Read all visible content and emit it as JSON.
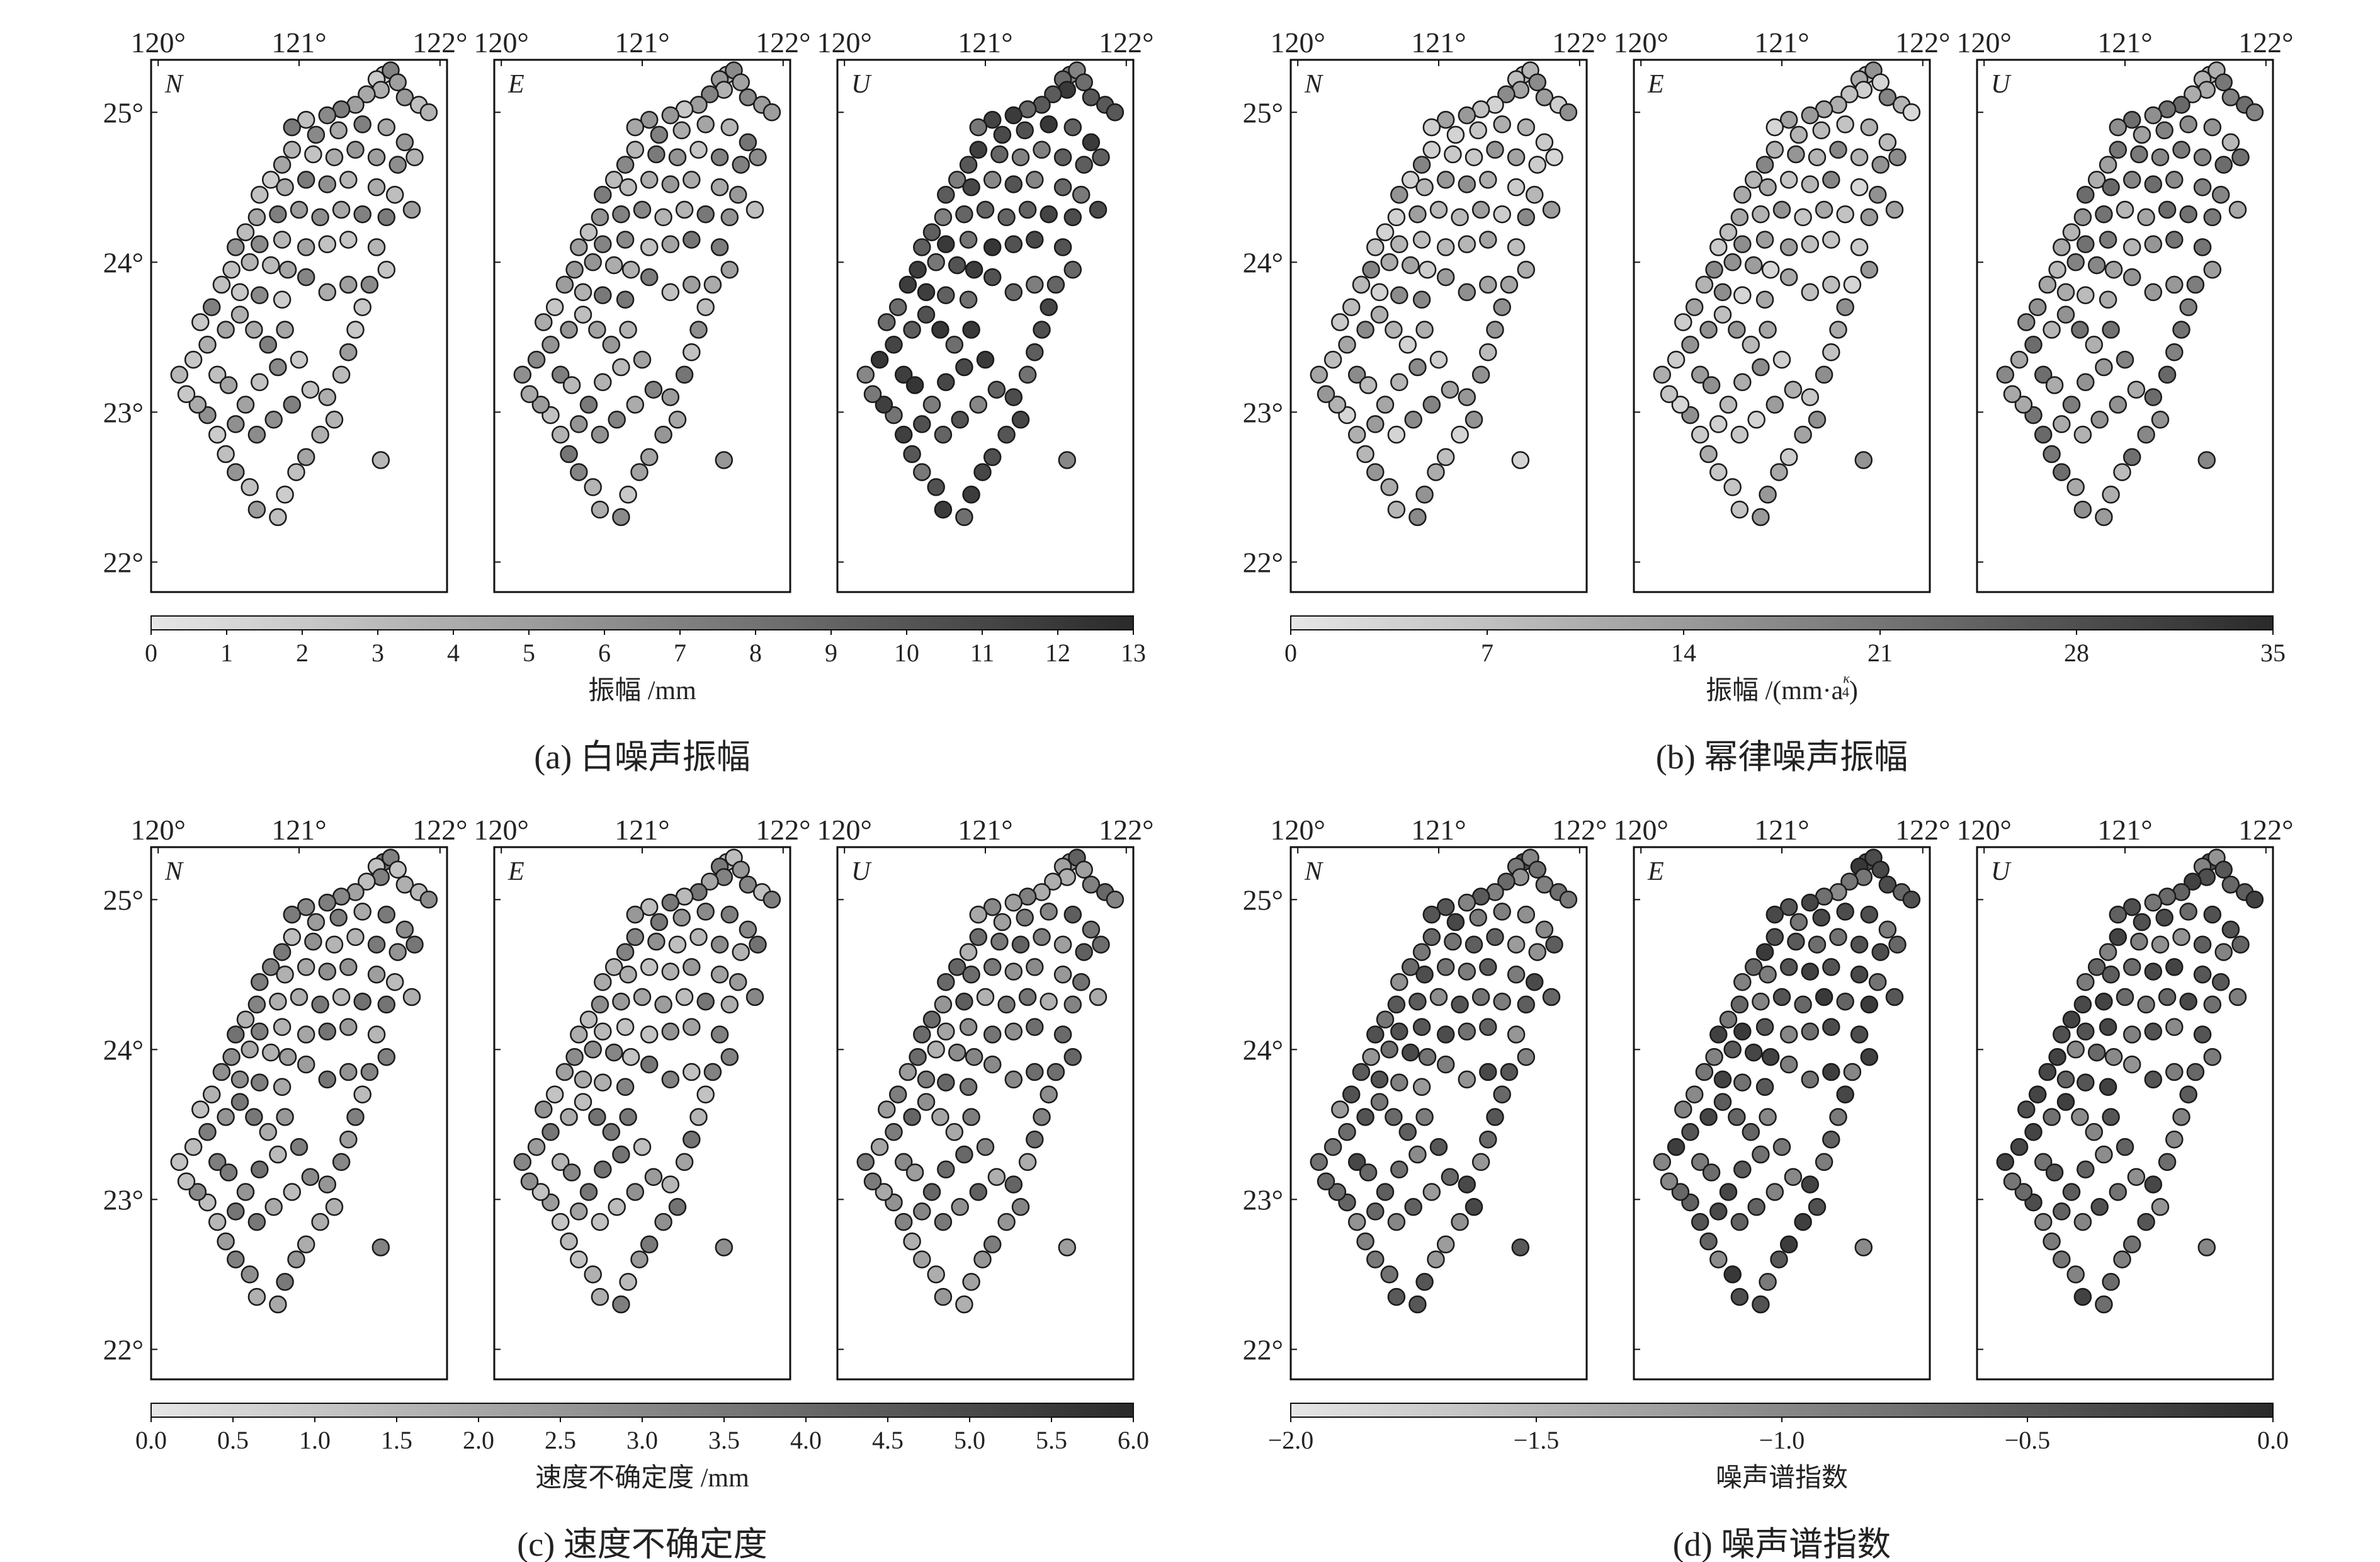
{
  "figure": {
    "lon_ticks": [
      "120°",
      "121°",
      "122°"
    ],
    "lat_ticks": [
      "22°",
      "23°",
      "24°",
      "25°"
    ],
    "component_labels": [
      "N",
      "E",
      "U"
    ]
  },
  "colors": {
    "low": "#e6e6e6",
    "high": "#2a2a2a",
    "frame": "#111111",
    "marker_edge": "#1a1a1a"
  },
  "chart_data": [
    {
      "type": "scatter",
      "caption": "(a) 白噪声振幅",
      "xlabel": "振幅 /mm",
      "colorbar_ticks": [
        "0",
        "1",
        "2",
        "3",
        "4",
        "5",
        "6",
        "7",
        "8",
        "9",
        "10",
        "11",
        "12",
        "13"
      ],
      "colorbar_range": [
        0,
        13
      ],
      "panels": [
        {
          "component": "N",
          "level": 0.35
        },
        {
          "component": "E",
          "level": 0.38
        },
        {
          "component": "U",
          "level": 0.72
        }
      ]
    },
    {
      "type": "scatter",
      "caption": "(b) 幂律噪声振幅",
      "xlabel": "振幅 /(mm·a^(κ/4))",
      "xlabel_main": "振幅 /(mm",
      "xlabel_dot": "·",
      "xlabel_a": "a",
      "xlabel_exp_num": "κ",
      "xlabel_exp_den": "4",
      "xlabel_close": ")",
      "colorbar_ticks": [
        "0",
        "7",
        "14",
        "21",
        "28",
        "35"
      ],
      "colorbar_range": [
        0,
        35
      ],
      "panels": [
        {
          "component": "N",
          "level": 0.3
        },
        {
          "component": "E",
          "level": 0.3
        },
        {
          "component": "U",
          "level": 0.45
        }
      ]
    },
    {
      "type": "scatter",
      "caption": "(c) 速度不确定度",
      "xlabel": "速度不确定度 /mm",
      "colorbar_ticks": [
        "0.0",
        "0.5",
        "1.0",
        "1.5",
        "2.0",
        "2.5",
        "3.0",
        "3.5",
        "4.0",
        "4.5",
        "5.0",
        "5.5",
        "6.0"
      ],
      "colorbar_range": [
        0.0,
        6.0
      ],
      "panels": [
        {
          "component": "N",
          "level": 0.4
        },
        {
          "component": "E",
          "level": 0.4
        },
        {
          "component": "U",
          "level": 0.5
        }
      ]
    },
    {
      "type": "scatter",
      "caption": "(d) 噪声谱指数",
      "xlabel": "噪声谱指数",
      "colorbar_ticks": [
        "−2.0",
        "−1.5",
        "−1.0",
        "−0.5",
        "0.0"
      ],
      "colorbar_range": [
        -2.0,
        0.0
      ],
      "panels": [
        {
          "component": "N",
          "level": 0.62
        },
        {
          "component": "E",
          "level": 0.7
        },
        {
          "component": "U",
          "level": 0.66
        }
      ]
    }
  ],
  "stations": [
    [
      121.6,
      25.25
    ],
    [
      121.65,
      25.28
    ],
    [
      121.55,
      25.22
    ],
    [
      121.7,
      25.2
    ],
    [
      121.58,
      25.15
    ],
    [
      121.48,
      25.12
    ],
    [
      121.75,
      25.1
    ],
    [
      121.85,
      25.05
    ],
    [
      121.92,
      25.0
    ],
    [
      121.4,
      25.05
    ],
    [
      121.3,
      25.02
    ],
    [
      121.2,
      24.98
    ],
    [
      121.05,
      24.95
    ],
    [
      120.95,
      24.9
    ],
    [
      121.12,
      24.85
    ],
    [
      121.28,
      24.88
    ],
    [
      121.45,
      24.92
    ],
    [
      121.62,
      24.9
    ],
    [
      121.75,
      24.8
    ],
    [
      121.82,
      24.7
    ],
    [
      121.7,
      24.65
    ],
    [
      121.55,
      24.7
    ],
    [
      121.4,
      24.75
    ],
    [
      121.25,
      24.7
    ],
    [
      121.1,
      24.72
    ],
    [
      120.95,
      24.75
    ],
    [
      120.88,
      24.65
    ],
    [
      120.8,
      24.55
    ],
    [
      120.72,
      24.45
    ],
    [
      120.9,
      24.5
    ],
    [
      121.05,
      24.55
    ],
    [
      121.2,
      24.52
    ],
    [
      121.35,
      24.55
    ],
    [
      121.55,
      24.5
    ],
    [
      121.68,
      24.45
    ],
    [
      121.8,
      24.35
    ],
    [
      121.62,
      24.3
    ],
    [
      121.45,
      24.32
    ],
    [
      121.3,
      24.35
    ],
    [
      121.15,
      24.3
    ],
    [
      121.0,
      24.35
    ],
    [
      120.85,
      24.32
    ],
    [
      120.7,
      24.3
    ],
    [
      120.62,
      24.2
    ],
    [
      120.55,
      24.1
    ],
    [
      120.72,
      24.12
    ],
    [
      120.88,
      24.15
    ],
    [
      121.05,
      24.1
    ],
    [
      121.2,
      24.12
    ],
    [
      121.35,
      24.15
    ],
    [
      121.55,
      24.1
    ],
    [
      121.62,
      23.95
    ],
    [
      121.5,
      23.85
    ],
    [
      121.35,
      23.85
    ],
    [
      121.2,
      23.8
    ],
    [
      121.05,
      23.9
    ],
    [
      120.92,
      23.95
    ],
    [
      120.8,
      23.98
    ],
    [
      120.65,
      24.0
    ],
    [
      120.52,
      23.95
    ],
    [
      120.45,
      23.85
    ],
    [
      120.58,
      23.8
    ],
    [
      120.72,
      23.78
    ],
    [
      120.88,
      23.75
    ],
    [
      121.45,
      23.7
    ],
    [
      121.4,
      23.55
    ],
    [
      121.35,
      23.4
    ],
    [
      121.3,
      23.25
    ],
    [
      121.2,
      23.1
    ],
    [
      121.25,
      22.95
    ],
    [
      121.15,
      22.85
    ],
    [
      121.05,
      22.7
    ],
    [
      120.98,
      22.6
    ],
    [
      120.9,
      22.45
    ],
    [
      120.85,
      22.3
    ],
    [
      120.7,
      22.35
    ],
    [
      120.65,
      22.5
    ],
    [
      120.55,
      22.6
    ],
    [
      120.48,
      22.72
    ],
    [
      120.42,
      22.85
    ],
    [
      120.35,
      22.98
    ],
    [
      120.28,
      23.05
    ],
    [
      120.2,
      23.12
    ],
    [
      120.15,
      23.25
    ],
    [
      120.25,
      23.35
    ],
    [
      120.35,
      23.45
    ],
    [
      120.48,
      23.55
    ],
    [
      120.58,
      23.65
    ],
    [
      120.68,
      23.55
    ],
    [
      120.78,
      23.45
    ],
    [
      120.85,
      23.3
    ],
    [
      120.72,
      23.2
    ],
    [
      120.62,
      23.05
    ],
    [
      120.55,
      22.92
    ],
    [
      120.7,
      22.85
    ],
    [
      120.82,
      22.95
    ],
    [
      120.95,
      23.05
    ],
    [
      121.08,
      23.15
    ],
    [
      121.0,
      23.35
    ],
    [
      120.9,
      23.55
    ],
    [
      121.58,
      22.68
    ],
    [
      120.38,
      23.7
    ],
    [
      120.3,
      23.6
    ],
    [
      120.42,
      23.25
    ],
    [
      120.5,
      23.18
    ]
  ]
}
